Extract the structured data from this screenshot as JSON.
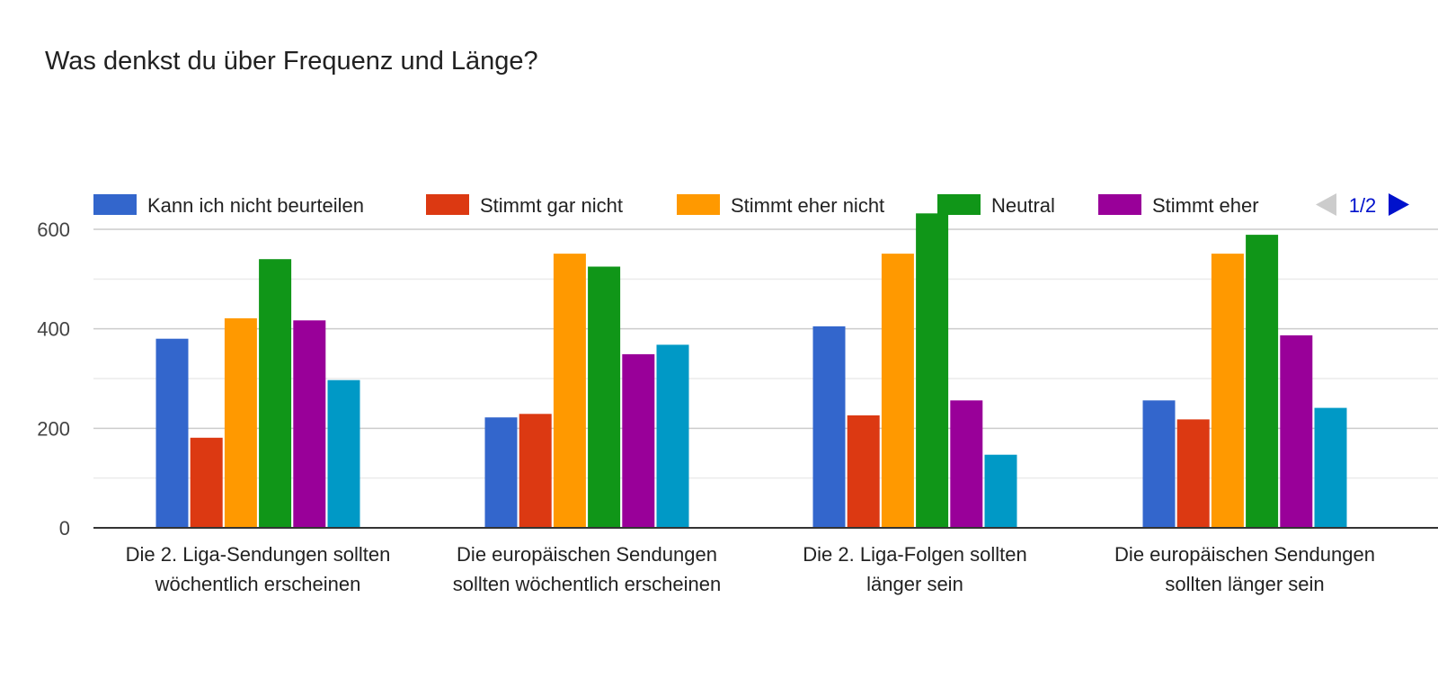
{
  "chart_data": {
    "type": "bar",
    "title": "Was denkst du über Frequenz und Länge?",
    "xlabel": "",
    "ylabel": "",
    "ylim": [
      0,
      640
    ],
    "yticks": [
      0,
      200,
      400,
      600
    ],
    "grid": true,
    "legend_position": "top",
    "legend_page": "1/2",
    "categories": [
      [
        "Die 2. Liga-Sendungen sollten",
        "wöchentlich erscheinen"
      ],
      [
        "Die europäischen Sendungen",
        "sollten wöchentlich erscheinen"
      ],
      [
        "Die 2. Liga-Folgen sollten",
        "länger sein"
      ],
      [
        "Die europäischen Sendungen",
        "sollten länger sein"
      ]
    ],
    "series": [
      {
        "name": "Kann ich nicht beurteilen",
        "color": "#3366cc",
        "values": [
          380,
          222,
          405,
          256
        ]
      },
      {
        "name": "Stimmt gar nicht",
        "color": "#dc3912",
        "values": [
          181,
          229,
          226,
          218
        ]
      },
      {
        "name": "Stimmt eher nicht",
        "color": "#ff9900",
        "values": [
          421,
          551,
          551,
          551
        ]
      },
      {
        "name": "Neutral",
        "color": "#109618",
        "values": [
          540,
          525,
          632,
          589
        ]
      },
      {
        "name": "Stimmt eher",
        "color": "#990099",
        "values": [
          417,
          349,
          256,
          387
        ]
      },
      {
        "color": "#0099c6",
        "values": [
          297,
          368,
          147,
          241
        ]
      }
    ]
  }
}
